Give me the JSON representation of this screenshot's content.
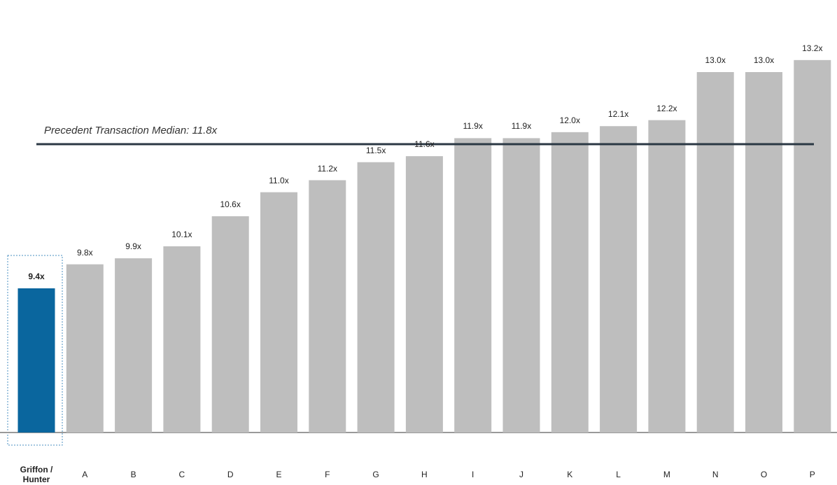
{
  "chart_data": {
    "type": "bar",
    "categories": [
      "Griffon / Hunter",
      "A",
      "B",
      "C",
      "D",
      "E",
      "F",
      "G",
      "H",
      "I",
      "J",
      "K",
      "L",
      "M",
      "N",
      "O",
      "P"
    ],
    "values": [
      9.4,
      9.8,
      9.9,
      10.1,
      10.6,
      11.0,
      11.2,
      11.5,
      11.6,
      11.9,
      11.9,
      12.0,
      12.1,
      12.2,
      13.0,
      13.0,
      13.2
    ],
    "value_labels": [
      "9.4x",
      "9.8x",
      "9.9x",
      "10.1x",
      "10.6x",
      "11.0x",
      "11.2x",
      "11.5x",
      "11.6x",
      "11.9x",
      "11.9x",
      "12.0x",
      "12.1x",
      "12.2x",
      "13.0x",
      "13.0x",
      "13.2x"
    ],
    "colors": [
      "#0a669e",
      "#bebebe",
      "#bebebe",
      "#bebebe",
      "#bebebe",
      "#bebebe",
      "#bebebe",
      "#bebebe",
      "#bebebe",
      "#bebebe",
      "#bebebe",
      "#bebebe",
      "#bebebe",
      "#bebebe",
      "#bebebe",
      "#bebebe",
      "#bebebe"
    ],
    "ylim": [
      7,
      14.2
    ],
    "reference_line": {
      "value": 11.8,
      "label": "Precedent Transaction Median: 11.8x"
    }
  }
}
